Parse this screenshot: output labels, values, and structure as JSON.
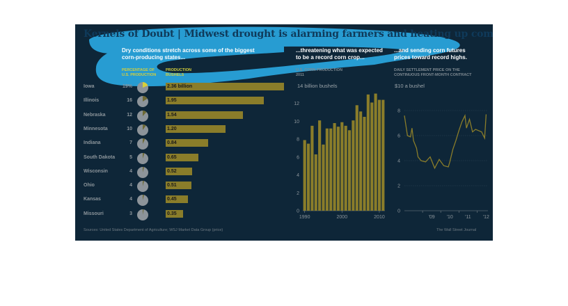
{
  "title": "Kernels of Doubt | Midwest drought is alarming farmers and heating up commodities markets",
  "panel1": {
    "subtitle_line1": "Dry conditions stretch across some of the biggest",
    "subtitle_line2": "corn-producing states...",
    "col1_line1": "PERCENTAGE OF",
    "col1_line2": "U.S. PRODUCTION",
    "col2_line1": "PRODUCTION",
    "col2_line2": "BUSHELS"
  },
  "panel2": {
    "subtitle_line1": "...threatening what was expected",
    "subtitle_line2": "to be a record corn crop...",
    "label_line1": "U.S. CORN PRODUCTION",
    "label_line2": "2011",
    "unit_label": "14 billion bushels"
  },
  "panel3": {
    "subtitle_line1": "...and sending corn futures",
    "subtitle_line2": "prices toward record highs.",
    "label_line1": "DAILY SETTLEMENT PRICE ON THE",
    "label_line2": "CONTINUOUS FRONT-MONTH CONTRACT",
    "unit_label": "$10 a bushel"
  },
  "source": "Sources: United States Department of Agriculture; WSJ Market Data Group (price)",
  "credit": "The Wall Street Journal",
  "colors": {
    "background": "#0e2638",
    "bar": "#8a7d2a",
    "highlight": "#2aa8e0",
    "accent_yellow": "#d6cf3a"
  },
  "chart_data": [
    {
      "type": "bar",
      "orientation": "horizontal",
      "categories": [
        "Iowa",
        "Illinois",
        "Nebraska",
        "Minnesota",
        "Indiana",
        "South Dakota",
        "Wisconsin",
        "Ohio",
        "Kansas",
        "Missouri"
      ],
      "percent_labels": [
        "19%",
        "16",
        "12",
        "10",
        "7",
        "5",
        "4",
        "4",
        "4",
        "3"
      ],
      "percent_values": [
        19,
        16,
        12,
        10,
        7,
        5,
        4,
        4,
        4,
        3
      ],
      "value_labels": [
        "2.36 billion",
        "1.95",
        "1.54",
        "1.20",
        "0.84",
        "0.65",
        "0.52",
        "0.51",
        "0.45",
        "0.35"
      ],
      "values": [
        2.36,
        1.95,
        1.54,
        1.2,
        0.84,
        0.65,
        0.52,
        0.51,
        0.45,
        0.35
      ]
    },
    {
      "type": "bar",
      "x": [
        1990,
        1991,
        1992,
        1993,
        1994,
        1995,
        1996,
        1997,
        1998,
        1999,
        2000,
        2001,
        2002,
        2003,
        2004,
        2005,
        2006,
        2007,
        2008,
        2009,
        2010,
        2011
      ],
      "values": [
        7.9,
        7.5,
        9.5,
        6.3,
        10.1,
        7.4,
        9.2,
        9.2,
        9.8,
        9.4,
        9.9,
        9.5,
        9.0,
        10.1,
        11.8,
        11.1,
        10.5,
        13.0,
        12.1,
        13.1,
        12.4,
        12.4
      ],
      "ylim": [
        0,
        14
      ],
      "yticks": [
        0,
        2,
        4,
        6,
        8,
        10,
        12
      ],
      "xticks": [
        "1990",
        "2000",
        "2010"
      ],
      "grid": false
    },
    {
      "type": "line",
      "x": [
        "2008-01",
        "2008-03",
        "2008-05",
        "2008-06",
        "2008-07",
        "2008-09",
        "2008-10",
        "2008-12",
        "2009-03",
        "2009-06",
        "2009-09",
        "2009-12",
        "2010-03",
        "2010-06",
        "2010-07",
        "2010-09",
        "2010-11",
        "2011-01",
        "2011-03",
        "2011-05",
        "2011-06",
        "2011-08",
        "2011-10",
        "2011-12",
        "2012-02",
        "2012-04",
        "2012-06",
        "2012-07"
      ],
      "values": [
        7.6,
        6.0,
        5.9,
        6.6,
        5.6,
        5.0,
        4.3,
        4.0,
        3.9,
        4.3,
        3.4,
        4.1,
        3.6,
        3.5,
        3.9,
        4.9,
        5.6,
        6.4,
        7.1,
        7.6,
        6.6,
        7.3,
        6.3,
        6.5,
        6.4,
        6.3,
        5.8,
        7.7
      ],
      "ylim": [
        0,
        10
      ],
      "yticks": [
        0,
        2,
        4,
        6,
        8
      ],
      "xticks": [
        "'09",
        "'10",
        "'11",
        "'12"
      ],
      "grid": true
    }
  ]
}
